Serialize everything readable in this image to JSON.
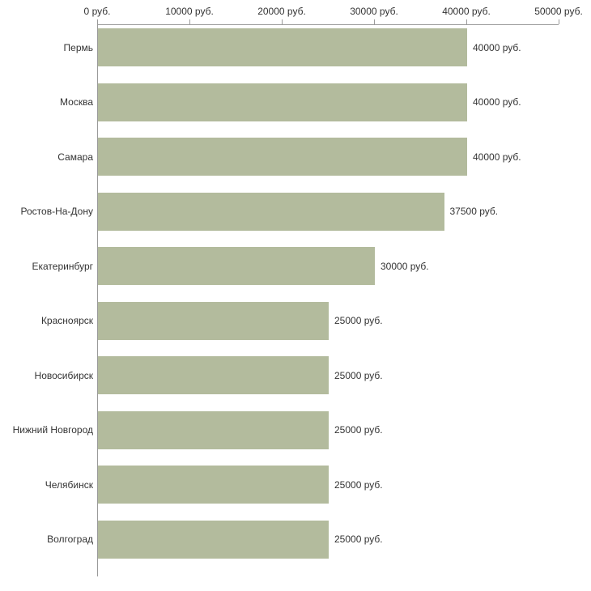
{
  "chart_data": {
    "type": "bar",
    "orientation": "horizontal",
    "title": "",
    "xlabel": "",
    "ylabel": "",
    "unit": "руб.",
    "categories": [
      "Пермь",
      "Москва",
      "Самара",
      "Ростов-На-Дону",
      "Екатеринбург",
      "Красноярск",
      "Новосибирск",
      "Нижний Новгород",
      "Челябинск",
      "Волгоград"
    ],
    "values": [
      40000,
      40000,
      40000,
      37500,
      30000,
      25000,
      25000,
      25000,
      25000,
      25000
    ],
    "value_labels": [
      "40000 руб.",
      "40000 руб.",
      "40000 руб.",
      "37500 руб.",
      "30000 руб.",
      "25000 руб.",
      "25000 руб.",
      "25000 руб.",
      "25000 руб.",
      "25000 руб."
    ],
    "xlim": [
      0,
      50000
    ],
    "x_ticks": [
      0,
      10000,
      20000,
      30000,
      40000,
      50000
    ],
    "x_tick_labels": [
      "0 руб.",
      "10000 руб.",
      "20000 руб.",
      "30000 руб.",
      "40000 руб.",
      "50000 руб."
    ],
    "bar_color": "#b3bb9d",
    "axis_color": "#9a9a9a",
    "text_color": "#333333",
    "background_color": "#ffffff",
    "grid": false,
    "legend": false
  }
}
